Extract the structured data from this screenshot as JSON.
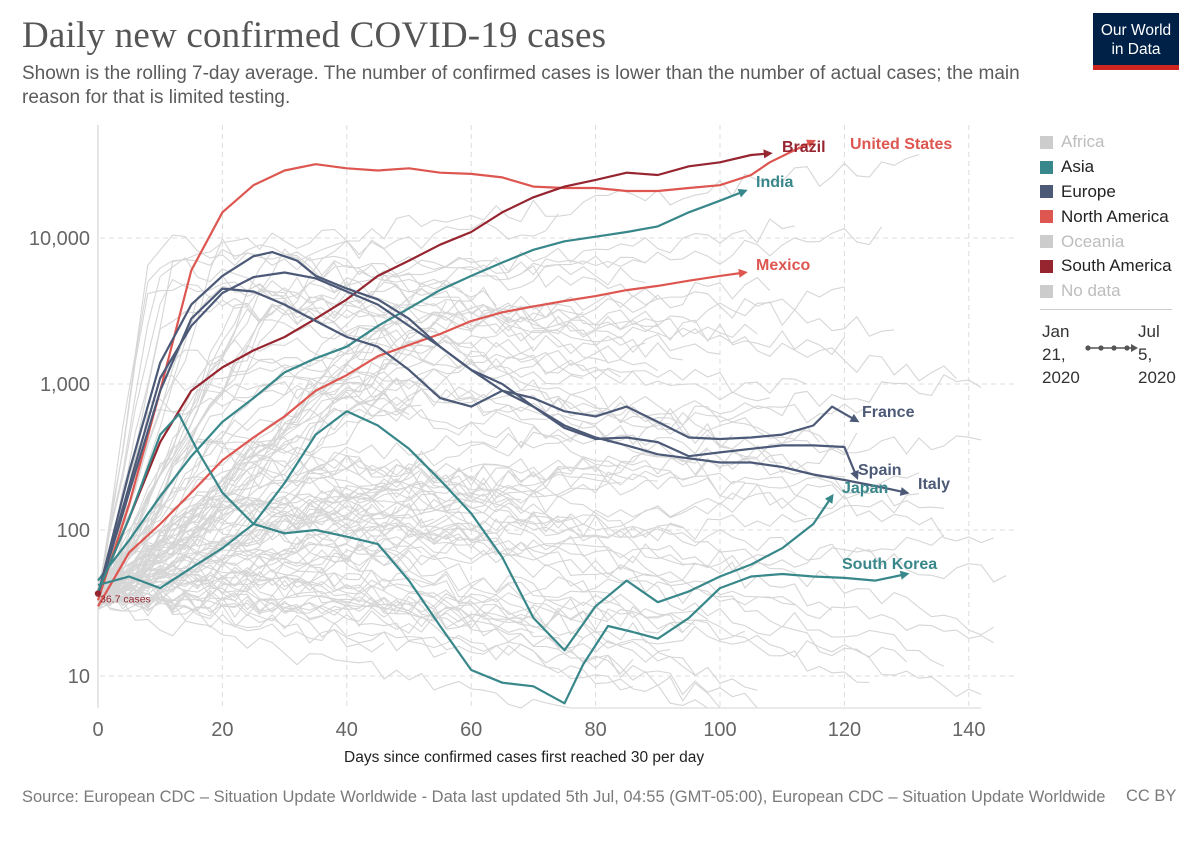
{
  "header": {
    "title": "Daily new confirmed COVID-19 cases",
    "subtitle": "Shown is the rolling 7-day average. The number of confirmed cases is lower than the number of actual cases; the main reason for that is limited testing."
  },
  "logo": {
    "line1": "Our World",
    "line2": "in Data",
    "background": "#002147",
    "accent": "#ce261e"
  },
  "legend": {
    "items": [
      {
        "label": "Africa",
        "color": "#cccccc",
        "muted": true
      },
      {
        "label": "Asia",
        "color": "#38878a",
        "muted": false
      },
      {
        "label": "Europe",
        "color": "#4c5a78",
        "muted": false
      },
      {
        "label": "North America",
        "color": "#de5650",
        "muted": false
      },
      {
        "label": "Oceania",
        "color": "#cccccc",
        "muted": true
      },
      {
        "label": "South America",
        "color": "#962530",
        "muted": false
      },
      {
        "label": "No data",
        "color": "#cccccc",
        "muted": true
      }
    ],
    "timeline": {
      "start_line1": "Jan",
      "start_line2": "21,",
      "start_line3": "2020",
      "end_line1": "Jul",
      "end_line2": "5,",
      "end_line3": "2020"
    }
  },
  "footer": {
    "source": "Source: European CDC – Situation Update Worldwide - Data last updated 5th Jul, 04:55 (GMT-05:00), European CDC – Situation Update Worldwide",
    "license": "CC BY"
  },
  "chart_data": {
    "type": "line",
    "title": "Daily new confirmed COVID-19 cases",
    "xlabel": "Days since confirmed cases first reached 30 per day",
    "ylabel": "",
    "y_scale": "log",
    "xlim": [
      0,
      150
    ],
    "ylim": [
      5,
      60000
    ],
    "x_ticks": [
      0,
      20,
      40,
      60,
      80,
      100,
      120,
      140
    ],
    "x_tick_labels": [
      "0",
      "20",
      "40",
      "60",
      "80",
      "100",
      "120",
      "140"
    ],
    "y_ticks": [
      10,
      100,
      1000,
      10000
    ],
    "y_tick_labels": [
      "10",
      "100",
      "1,000",
      "10,000"
    ],
    "grid": true,
    "legend_position": "right",
    "start_annotation": "36.7 cases",
    "series": [
      {
        "name": "United States",
        "color": "#de5650",
        "points": [
          [
            0,
            33
          ],
          [
            5,
            150
          ],
          [
            10,
            900
          ],
          [
            15,
            6000
          ],
          [
            20,
            15000
          ],
          [
            25,
            23000
          ],
          [
            30,
            29000
          ],
          [
            35,
            32000
          ],
          [
            40,
            30000
          ],
          [
            45,
            29000
          ],
          [
            50,
            30000
          ],
          [
            55,
            28000
          ],
          [
            60,
            27500
          ],
          [
            65,
            26000
          ],
          [
            70,
            22500
          ],
          [
            75,
            22000
          ],
          [
            80,
            22000
          ],
          [
            85,
            21000
          ],
          [
            90,
            21000
          ],
          [
            95,
            22000
          ],
          [
            100,
            23000
          ],
          [
            105,
            27000
          ],
          [
            108,
            33000
          ],
          [
            112,
            40000
          ],
          [
            115,
            46000
          ]
        ]
      },
      {
        "name": "Brazil",
        "color": "#962530",
        "points": [
          [
            0,
            38
          ],
          [
            5,
            120
          ],
          [
            10,
            400
          ],
          [
            15,
            900
          ],
          [
            20,
            1300
          ],
          [
            25,
            1700
          ],
          [
            30,
            2100
          ],
          [
            35,
            2800
          ],
          [
            40,
            3800
          ],
          [
            45,
            5500
          ],
          [
            50,
            7000
          ],
          [
            55,
            9000
          ],
          [
            60,
            11000
          ],
          [
            65,
            15000
          ],
          [
            70,
            19000
          ],
          [
            75,
            22500
          ],
          [
            80,
            25000
          ],
          [
            85,
            28000
          ],
          [
            90,
            27000
          ],
          [
            95,
            31000
          ],
          [
            100,
            33000
          ],
          [
            105,
            37000
          ],
          [
            108,
            38000
          ]
        ]
      },
      {
        "name": "India",
        "color": "#38878a",
        "points": [
          [
            0,
            45
          ],
          [
            5,
            85
          ],
          [
            10,
            170
          ],
          [
            15,
            320
          ],
          [
            20,
            550
          ],
          [
            25,
            800
          ],
          [
            30,
            1200
          ],
          [
            35,
            1500
          ],
          [
            40,
            1800
          ],
          [
            45,
            2500
          ],
          [
            50,
            3300
          ],
          [
            55,
            4400
          ],
          [
            60,
            5500
          ],
          [
            65,
            6800
          ],
          [
            70,
            8300
          ],
          [
            75,
            9500
          ],
          [
            80,
            10200
          ],
          [
            85,
            11000
          ],
          [
            90,
            12000
          ],
          [
            95,
            15000
          ],
          [
            100,
            18000
          ],
          [
            104,
            21000
          ]
        ]
      },
      {
        "name": "Mexico",
        "color": "#de5650",
        "points": [
          [
            0,
            30
          ],
          [
            5,
            70
          ],
          [
            10,
            110
          ],
          [
            15,
            180
          ],
          [
            20,
            300
          ],
          [
            25,
            430
          ],
          [
            30,
            600
          ],
          [
            35,
            900
          ],
          [
            40,
            1150
          ],
          [
            45,
            1550
          ],
          [
            50,
            1850
          ],
          [
            55,
            2200
          ],
          [
            60,
            2700
          ],
          [
            65,
            3100
          ],
          [
            70,
            3400
          ],
          [
            75,
            3700
          ],
          [
            80,
            4000
          ],
          [
            85,
            4400
          ],
          [
            90,
            4700
          ],
          [
            95,
            5100
          ],
          [
            100,
            5500
          ],
          [
            104,
            5800
          ]
        ]
      },
      {
        "name": "France",
        "color": "#4c5a78",
        "points": [
          [
            0,
            36
          ],
          [
            5,
            180
          ],
          [
            10,
            900
          ],
          [
            15,
            2800
          ],
          [
            20,
            4500
          ],
          [
            25,
            4300
          ],
          [
            30,
            3500
          ],
          [
            35,
            2700
          ],
          [
            40,
            2100
          ],
          [
            45,
            1800
          ],
          [
            50,
            1250
          ],
          [
            55,
            800
          ],
          [
            60,
            700
          ],
          [
            65,
            900
          ],
          [
            70,
            800
          ],
          [
            75,
            650
          ],
          [
            80,
            600
          ],
          [
            85,
            700
          ],
          [
            90,
            550
          ],
          [
            95,
            430
          ],
          [
            100,
            420
          ],
          [
            105,
            430
          ],
          [
            110,
            450
          ],
          [
            115,
            520
          ],
          [
            118,
            700
          ],
          [
            122,
            560
          ]
        ]
      },
      {
        "name": "Spain",
        "color": "#4c5a78",
        "points": [
          [
            0,
            36
          ],
          [
            5,
            250
          ],
          [
            10,
            1400
          ],
          [
            15,
            3500
          ],
          [
            20,
            5500
          ],
          [
            25,
            7500
          ],
          [
            28,
            8000
          ],
          [
            32,
            7000
          ],
          [
            35,
            5500
          ],
          [
            40,
            4500
          ],
          [
            45,
            3800
          ],
          [
            50,
            2800
          ],
          [
            55,
            1800
          ],
          [
            60,
            1250
          ],
          [
            65,
            1000
          ],
          [
            70,
            700
          ],
          [
            75,
            500
          ],
          [
            80,
            420
          ],
          [
            85,
            430
          ],
          [
            90,
            400
          ],
          [
            95,
            320
          ],
          [
            100,
            340
          ],
          [
            105,
            360
          ],
          [
            110,
            380
          ],
          [
            115,
            380
          ],
          [
            120,
            370
          ],
          [
            122,
            230
          ]
        ]
      },
      {
        "name": "Italy",
        "color": "#4c5a78",
        "points": [
          [
            0,
            36
          ],
          [
            5,
            200
          ],
          [
            10,
            1100
          ],
          [
            15,
            2500
          ],
          [
            20,
            4200
          ],
          [
            25,
            5400
          ],
          [
            30,
            5800
          ],
          [
            35,
            5300
          ],
          [
            40,
            4300
          ],
          [
            45,
            3500
          ],
          [
            50,
            2500
          ],
          [
            55,
            1800
          ],
          [
            60,
            1250
          ],
          [
            65,
            900
          ],
          [
            70,
            700
          ],
          [
            75,
            520
          ],
          [
            80,
            430
          ],
          [
            85,
            380
          ],
          [
            90,
            330
          ],
          [
            95,
            310
          ],
          [
            100,
            290
          ],
          [
            105,
            290
          ],
          [
            110,
            270
          ],
          [
            115,
            240
          ],
          [
            120,
            220
          ],
          [
            125,
            200
          ],
          [
            130,
            180
          ]
        ]
      },
      {
        "name": "Japan",
        "color": "#38878a",
        "points": [
          [
            0,
            42
          ],
          [
            5,
            48
          ],
          [
            10,
            40
          ],
          [
            15,
            55
          ],
          [
            20,
            75
          ],
          [
            25,
            110
          ],
          [
            30,
            210
          ],
          [
            35,
            450
          ],
          [
            40,
            650
          ],
          [
            45,
            520
          ],
          [
            50,
            360
          ],
          [
            55,
            220
          ],
          [
            60,
            130
          ],
          [
            65,
            65
          ],
          [
            70,
            25
          ],
          [
            75,
            15
          ],
          [
            80,
            30
          ],
          [
            85,
            45
          ],
          [
            90,
            32
          ],
          [
            95,
            38
          ],
          [
            100,
            48
          ],
          [
            105,
            58
          ],
          [
            110,
            75
          ],
          [
            115,
            110
          ],
          [
            118,
            170
          ]
        ]
      },
      {
        "name": "South Korea",
        "color": "#38878a",
        "points": [
          [
            0,
            38
          ],
          [
            5,
            120
          ],
          [
            10,
            450
          ],
          [
            13,
            620
          ],
          [
            16,
            350
          ],
          [
            20,
            180
          ],
          [
            25,
            110
          ],
          [
            30,
            95
          ],
          [
            35,
            100
          ],
          [
            40,
            90
          ],
          [
            45,
            80
          ],
          [
            50,
            45
          ],
          [
            55,
            22
          ],
          [
            60,
            11
          ],
          [
            65,
            9
          ],
          [
            70,
            8.5
          ],
          [
            75,
            6.5
          ],
          [
            78,
            12
          ],
          [
            82,
            22
          ],
          [
            86,
            20
          ],
          [
            90,
            18
          ],
          [
            95,
            25
          ],
          [
            100,
            40
          ],
          [
            105,
            48
          ],
          [
            110,
            50
          ],
          [
            115,
            48
          ],
          [
            120,
            47
          ],
          [
            125,
            45
          ],
          [
            130,
            50
          ]
        ]
      }
    ]
  }
}
